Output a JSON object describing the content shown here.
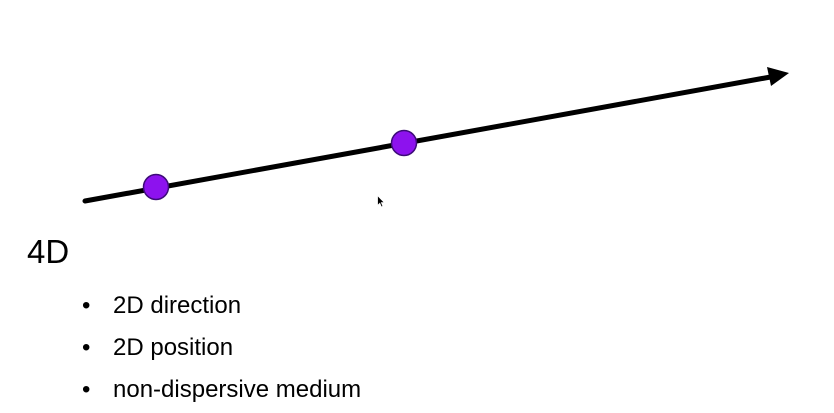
{
  "heading": "4D",
  "bullets": [
    "2D direction",
    "2D position",
    "non-dispersive medium"
  ],
  "colors": {
    "ray": "#000000",
    "point_fill": "#8d12ee",
    "point_stroke": "#3d0b78",
    "background": "#ffffff"
  },
  "icons": {
    "ray_head": "arrowhead",
    "points": "filled-circle",
    "pointer": "mouse-cursor"
  }
}
